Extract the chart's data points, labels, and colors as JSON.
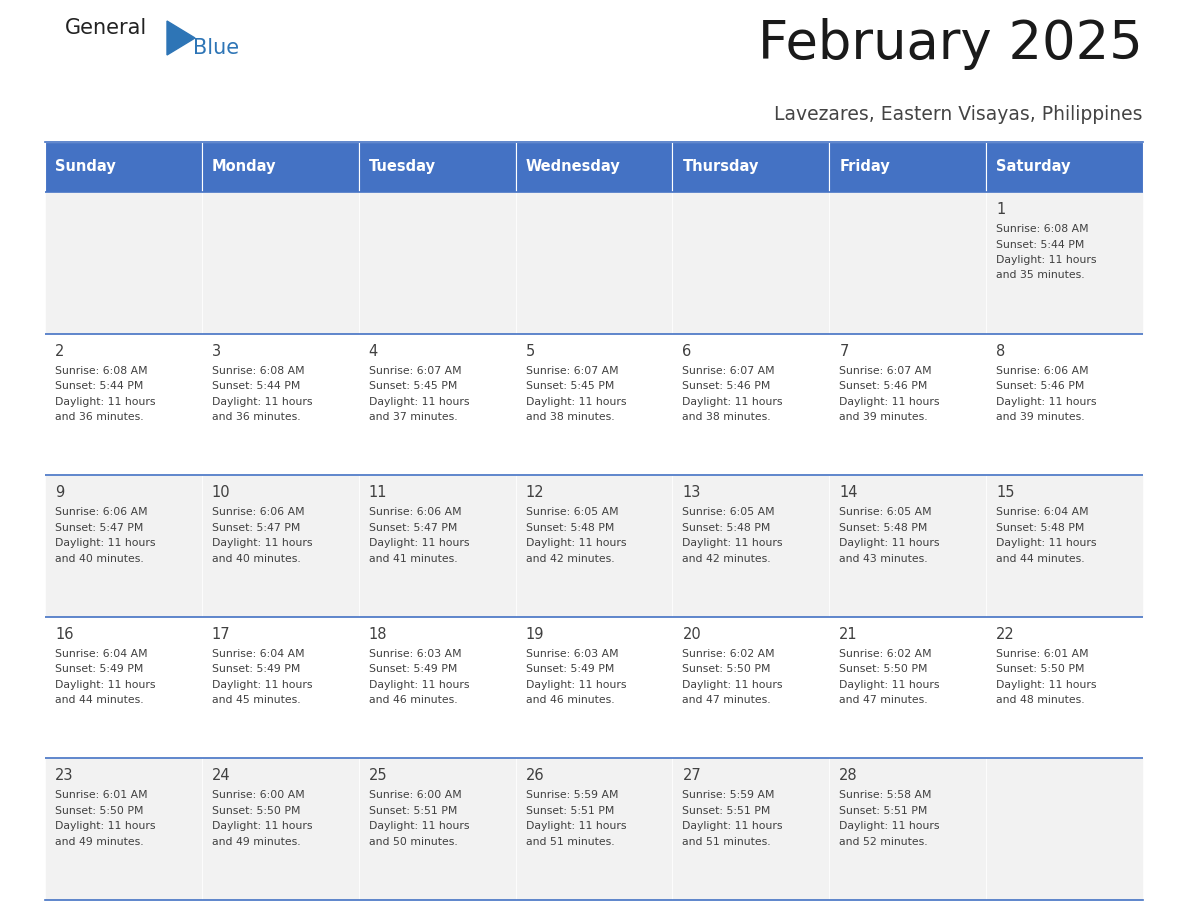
{
  "title": "February 2025",
  "subtitle": "Lavezares, Eastern Visayas, Philippines",
  "header_bg": "#4472C4",
  "header_text": "#FFFFFF",
  "cell_bg_odd": "#F2F2F2",
  "cell_bg_even": "#FFFFFF",
  "border_color": "#4472C4",
  "text_color": "#404040",
  "days_of_week": [
    "Sunday",
    "Monday",
    "Tuesday",
    "Wednesday",
    "Thursday",
    "Friday",
    "Saturday"
  ],
  "calendar": [
    [
      {
        "day": "",
        "sunrise": "",
        "sunset": "",
        "daylight_hours": "",
        "daylight_min": ""
      },
      {
        "day": "",
        "sunrise": "",
        "sunset": "",
        "daylight_hours": "",
        "daylight_min": ""
      },
      {
        "day": "",
        "sunrise": "",
        "sunset": "",
        "daylight_hours": "",
        "daylight_min": ""
      },
      {
        "day": "",
        "sunrise": "",
        "sunset": "",
        "daylight_hours": "",
        "daylight_min": ""
      },
      {
        "day": "",
        "sunrise": "",
        "sunset": "",
        "daylight_hours": "",
        "daylight_min": ""
      },
      {
        "day": "",
        "sunrise": "",
        "sunset": "",
        "daylight_hours": "",
        "daylight_min": ""
      },
      {
        "day": "1",
        "sunrise": "6:08 AM",
        "sunset": "5:44 PM",
        "daylight_hours": "11",
        "daylight_min": "35"
      }
    ],
    [
      {
        "day": "2",
        "sunrise": "6:08 AM",
        "sunset": "5:44 PM",
        "daylight_hours": "11",
        "daylight_min": "36"
      },
      {
        "day": "3",
        "sunrise": "6:08 AM",
        "sunset": "5:44 PM",
        "daylight_hours": "11",
        "daylight_min": "36"
      },
      {
        "day": "4",
        "sunrise": "6:07 AM",
        "sunset": "5:45 PM",
        "daylight_hours": "11",
        "daylight_min": "37"
      },
      {
        "day": "5",
        "sunrise": "6:07 AM",
        "sunset": "5:45 PM",
        "daylight_hours": "11",
        "daylight_min": "38"
      },
      {
        "day": "6",
        "sunrise": "6:07 AM",
        "sunset": "5:46 PM",
        "daylight_hours": "11",
        "daylight_min": "38"
      },
      {
        "day": "7",
        "sunrise": "6:07 AM",
        "sunset": "5:46 PM",
        "daylight_hours": "11",
        "daylight_min": "39"
      },
      {
        "day": "8",
        "sunrise": "6:06 AM",
        "sunset": "5:46 PM",
        "daylight_hours": "11",
        "daylight_min": "39"
      }
    ],
    [
      {
        "day": "9",
        "sunrise": "6:06 AM",
        "sunset": "5:47 PM",
        "daylight_hours": "11",
        "daylight_min": "40"
      },
      {
        "day": "10",
        "sunrise": "6:06 AM",
        "sunset": "5:47 PM",
        "daylight_hours": "11",
        "daylight_min": "40"
      },
      {
        "day": "11",
        "sunrise": "6:06 AM",
        "sunset": "5:47 PM",
        "daylight_hours": "11",
        "daylight_min": "41"
      },
      {
        "day": "12",
        "sunrise": "6:05 AM",
        "sunset": "5:48 PM",
        "daylight_hours": "11",
        "daylight_min": "42"
      },
      {
        "day": "13",
        "sunrise": "6:05 AM",
        "sunset": "5:48 PM",
        "daylight_hours": "11",
        "daylight_min": "42"
      },
      {
        "day": "14",
        "sunrise": "6:05 AM",
        "sunset": "5:48 PM",
        "daylight_hours": "11",
        "daylight_min": "43"
      },
      {
        "day": "15",
        "sunrise": "6:04 AM",
        "sunset": "5:48 PM",
        "daylight_hours": "11",
        "daylight_min": "44"
      }
    ],
    [
      {
        "day": "16",
        "sunrise": "6:04 AM",
        "sunset": "5:49 PM",
        "daylight_hours": "11",
        "daylight_min": "44"
      },
      {
        "day": "17",
        "sunrise": "6:04 AM",
        "sunset": "5:49 PM",
        "daylight_hours": "11",
        "daylight_min": "45"
      },
      {
        "day": "18",
        "sunrise": "6:03 AM",
        "sunset": "5:49 PM",
        "daylight_hours": "11",
        "daylight_min": "46"
      },
      {
        "day": "19",
        "sunrise": "6:03 AM",
        "sunset": "5:49 PM",
        "daylight_hours": "11",
        "daylight_min": "46"
      },
      {
        "day": "20",
        "sunrise": "6:02 AM",
        "sunset": "5:50 PM",
        "daylight_hours": "11",
        "daylight_min": "47"
      },
      {
        "day": "21",
        "sunrise": "6:02 AM",
        "sunset": "5:50 PM",
        "daylight_hours": "11",
        "daylight_min": "47"
      },
      {
        "day": "22",
        "sunrise": "6:01 AM",
        "sunset": "5:50 PM",
        "daylight_hours": "11",
        "daylight_min": "48"
      }
    ],
    [
      {
        "day": "23",
        "sunrise": "6:01 AM",
        "sunset": "5:50 PM",
        "daylight_hours": "11",
        "daylight_min": "49"
      },
      {
        "day": "24",
        "sunrise": "6:00 AM",
        "sunset": "5:50 PM",
        "daylight_hours": "11",
        "daylight_min": "49"
      },
      {
        "day": "25",
        "sunrise": "6:00 AM",
        "sunset": "5:51 PM",
        "daylight_hours": "11",
        "daylight_min": "50"
      },
      {
        "day": "26",
        "sunrise": "5:59 AM",
        "sunset": "5:51 PM",
        "daylight_hours": "11",
        "daylight_min": "51"
      },
      {
        "day": "27",
        "sunrise": "5:59 AM",
        "sunset": "5:51 PM",
        "daylight_hours": "11",
        "daylight_min": "51"
      },
      {
        "day": "28",
        "sunrise": "5:58 AM",
        "sunset": "5:51 PM",
        "daylight_hours": "11",
        "daylight_min": "52"
      },
      {
        "day": "",
        "sunrise": "",
        "sunset": "",
        "daylight_hours": "",
        "daylight_min": ""
      }
    ]
  ],
  "logo_general_color": "#222222",
  "logo_blue_color": "#2E75B6",
  "logo_triangle_color": "#2E75B6"
}
